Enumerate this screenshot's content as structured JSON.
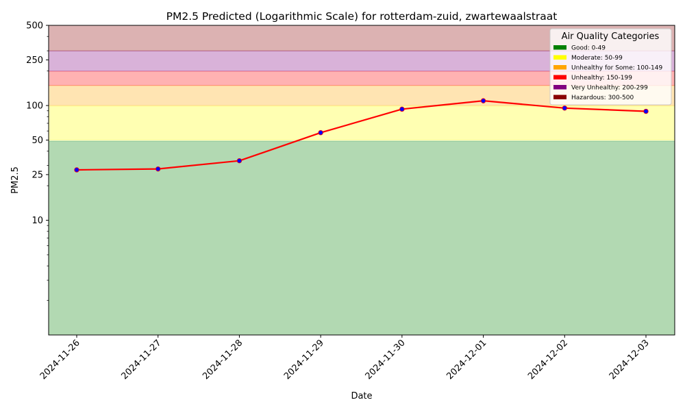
{
  "chart_data": {
    "type": "line",
    "title": "PM2.5 Predicted (Logarithmic Scale) for rotterdam-zuid, zwartewaalstraat",
    "xlabel": "Date",
    "ylabel": "PM2.5",
    "yscale": "log",
    "ylim": [
      1,
      500
    ],
    "yticks": [
      10,
      25,
      50,
      100,
      250,
      500
    ],
    "grid": false,
    "legend_position": "top-right",
    "legend_title": "Air Quality Categories",
    "x": [
      "2024-11-26",
      "2024-11-27",
      "2024-11-28",
      "2024-11-29",
      "2024-11-30",
      "2024-12-01",
      "2024-12-02",
      "2024-12-03"
    ],
    "series": [
      {
        "values": [
          27.5,
          28,
          33,
          58,
          93,
          110,
          95,
          89
        ],
        "line_color": "#ff0000",
        "marker_color": "#0000ff"
      }
    ],
    "bands": [
      {
        "label": "Good: 0-49",
        "from": 0,
        "to": 49,
        "color": "#008000"
      },
      {
        "label": "Moderate: 50-99",
        "from": 50,
        "to": 99,
        "color": "#ffff00"
      },
      {
        "label": "Unhealthy for Some: 100-149",
        "from": 100,
        "to": 149,
        "color": "#ffa500"
      },
      {
        "label": "Unhealthy: 150-199",
        "from": 150,
        "to": 199,
        "color": "#ff0000"
      },
      {
        "label": "Very Unhealthy: 200-299",
        "from": 200,
        "to": 299,
        "color": "#800080"
      },
      {
        "label": "Hazardous: 300-500",
        "from": 300,
        "to": 500,
        "color": "#8b0000"
      }
    ]
  }
}
